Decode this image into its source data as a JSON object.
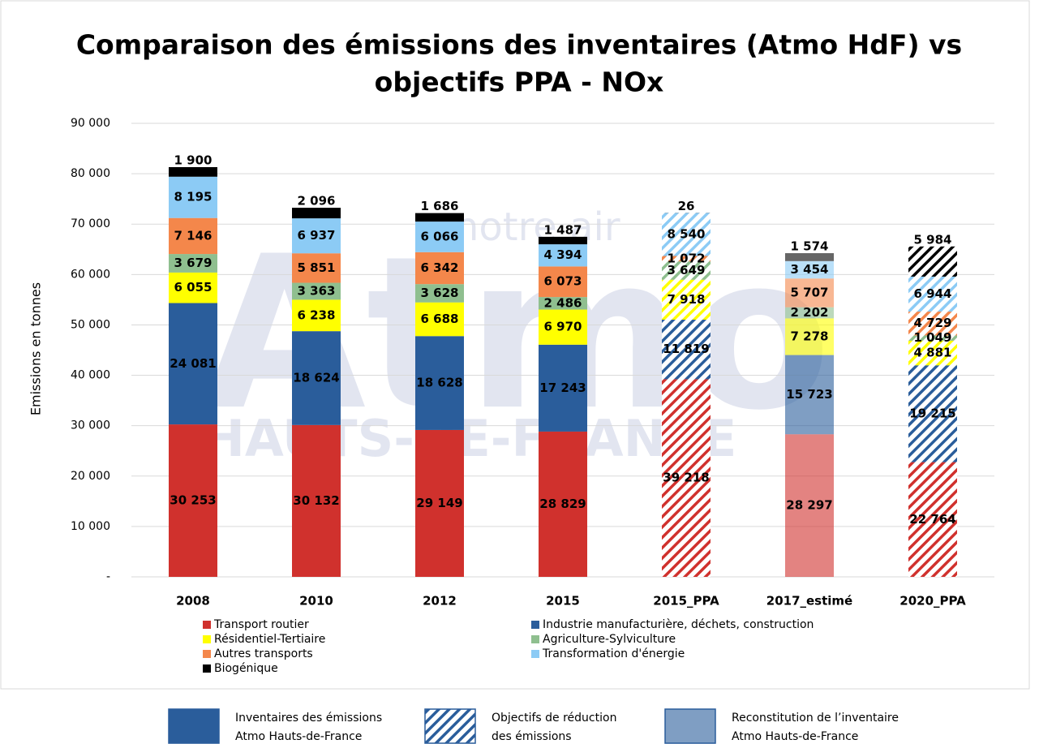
{
  "chart_data": {
    "type": "stacked_bar",
    "title": [
      "Comparaison des émissions des inventaires (Atmo HdF) vs",
      "objectifs PPA - NOx"
    ],
    "y_label": "Emissions en tonnes",
    "watermark": {
      "main": "Atmo",
      "tagline": "notre air",
      "region": "HAUTS-DE-FRANCE"
    },
    "categories": [
      "2008",
      "2010",
      "2012",
      "2015",
      "2015_PPA",
      "2017_estimé",
      "2020_PPA"
    ],
    "category_styles": [
      "solid",
      "solid",
      "solid",
      "solid",
      "hatched",
      "faded",
      "hatched"
    ],
    "ylim": [
      0,
      90000
    ],
    "yticks": [
      {
        "value": 0,
        "label": "-"
      },
      {
        "value": 10000,
        "label": "10 000"
      },
      {
        "value": 20000,
        "label": "20 000"
      },
      {
        "value": 30000,
        "label": "30 000"
      },
      {
        "value": 40000,
        "label": "40 000"
      },
      {
        "value": 50000,
        "label": "50 000"
      },
      {
        "value": 60000,
        "label": "60 000"
      },
      {
        "value": 70000,
        "label": "70 000"
      },
      {
        "value": 80000,
        "label": "80 000"
      },
      {
        "value": 90000,
        "label": "90 000"
      }
    ],
    "grid": true,
    "series": [
      {
        "name": "Transport routier",
        "color": "#d0312d",
        "values": [
          30253,
          30132,
          29149,
          28829,
          39218,
          28297,
          22764
        ],
        "value_labels": [
          "30 253",
          "30 132",
          "29 149",
          "28 829",
          "39 218",
          "28 297",
          "22 764"
        ]
      },
      {
        "name": "Industrie manufacturière, déchets, construction",
        "color": "#2a5d9b",
        "values": [
          24081,
          18624,
          18628,
          17243,
          11819,
          15723,
          19215
        ],
        "value_labels": [
          "24 081",
          "18 624",
          "18 628",
          "17 243",
          "11 819",
          "15 723",
          "19 215"
        ]
      },
      {
        "name": "Résidentiel-Tertiaire",
        "color": "#ffff00",
        "values": [
          6055,
          6238,
          6688,
          6970,
          7918,
          7278,
          4881
        ],
        "value_labels": [
          "6 055",
          "6 238",
          "6 688",
          "6 970",
          "7 918",
          "7 278",
          "4 881"
        ]
      },
      {
        "name": "Agriculture-Sylviculture",
        "color": "#8fbf8f",
        "values": [
          3679,
          3363,
          3628,
          2486,
          3649,
          2202,
          1049
        ],
        "value_labels": [
          "3 679",
          "3 363",
          "3 628",
          "2 486",
          "3 649",
          "2 202",
          "1 049"
        ]
      },
      {
        "name": "Autres transports",
        "color": "#f4874b",
        "values": [
          7146,
          5851,
          6342,
          6073,
          1072,
          5707,
          4729
        ],
        "value_labels": [
          "7 146",
          "5 851",
          "6 342",
          "6 073",
          "1 072",
          "5 707",
          "4 729"
        ]
      },
      {
        "name": "Transformation d'énergie",
        "color": "#8ccbf5",
        "values": [
          8195,
          6937,
          6066,
          4394,
          8540,
          3454,
          6944
        ],
        "value_labels": [
          "8 195",
          "6 937",
          "6 066",
          "4 394",
          "8 540",
          "3 454",
          "6 944"
        ]
      },
      {
        "name": "Biogénique",
        "color": "#000000",
        "values": [
          1900,
          2096,
          1686,
          1487,
          26,
          1574,
          5984
        ],
        "value_labels": [
          "1 900",
          "2 096",
          "1 686",
          "1 487",
          "26",
          "1 574",
          "5 984"
        ]
      }
    ],
    "style_legend": [
      {
        "style": "solid",
        "lines": [
          "Inventaires des émissions",
          "Atmo Hauts-de-France"
        ]
      },
      {
        "style": "hatched",
        "lines": [
          "Objectifs de réduction",
          "des émissions"
        ]
      },
      {
        "style": "faded",
        "lines": [
          "Reconstitution de l’inventaire",
          "Atmo Hauts-de-France"
        ]
      }
    ]
  }
}
